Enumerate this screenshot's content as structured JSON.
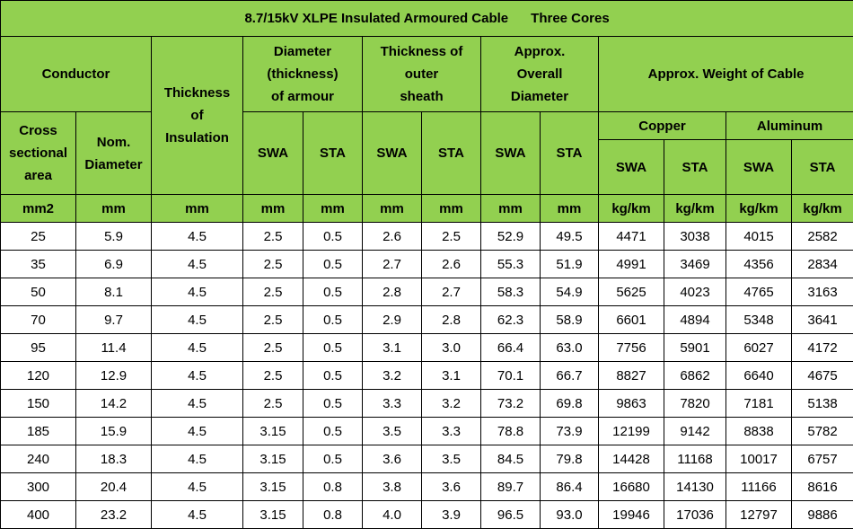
{
  "title": "8.7/15kV XLPE Insulated Armoured Cable      Three Cores",
  "headers": {
    "conductor": "Conductor",
    "thickness_insulation": "Thickness\nof\nInsulation",
    "diameter_armour": "Diameter\n(thickness)\nof armour",
    "thickness_sheath": "Thickness of\nouter\nsheath",
    "overall_diameter": "Approx.\nOverall\nDiameter",
    "weight": "Approx. Weight of Cable",
    "cross_section": "Cross\nsectional\narea",
    "nom_diameter": "Nom.\nDiameter",
    "copper": "Copper",
    "aluminum": "Aluminum",
    "swa": "SWA",
    "sta": "STA"
  },
  "units": [
    "mm2",
    "mm",
    "mm",
    "mm",
    "mm",
    "mm",
    "mm",
    "mm",
    "mm",
    "kg/km",
    "kg/km",
    "kg/km",
    "kg/km"
  ],
  "rows": [
    [
      "25",
      "5.9",
      "4.5",
      "2.5",
      "0.5",
      "2.6",
      "2.5",
      "52.9",
      "49.5",
      "4471",
      "3038",
      "4015",
      "2582"
    ],
    [
      "35",
      "6.9",
      "4.5",
      "2.5",
      "0.5",
      "2.7",
      "2.6",
      "55.3",
      "51.9",
      "4991",
      "3469",
      "4356",
      "2834"
    ],
    [
      "50",
      "8.1",
      "4.5",
      "2.5",
      "0.5",
      "2.8",
      "2.7",
      "58.3",
      "54.9",
      "5625",
      "4023",
      "4765",
      "3163"
    ],
    [
      "70",
      "9.7",
      "4.5",
      "2.5",
      "0.5",
      "2.9",
      "2.8",
      "62.3",
      "58.9",
      "6601",
      "4894",
      "5348",
      "3641"
    ],
    [
      "95",
      "11.4",
      "4.5",
      "2.5",
      "0.5",
      "3.1",
      "3.0",
      "66.4",
      "63.0",
      "7756",
      "5901",
      "6027",
      "4172"
    ],
    [
      "120",
      "12.9",
      "4.5",
      "2.5",
      "0.5",
      "3.2",
      "3.1",
      "70.1",
      "66.7",
      "8827",
      "6862",
      "6640",
      "4675"
    ],
    [
      "150",
      "14.2",
      "4.5",
      "2.5",
      "0.5",
      "3.3",
      "3.2",
      "73.2",
      "69.8",
      "9863",
      "7820",
      "7181",
      "5138"
    ],
    [
      "185",
      "15.9",
      "4.5",
      "3.15",
      "0.5",
      "3.5",
      "3.3",
      "78.8",
      "73.9",
      "12199",
      "9142",
      "8838",
      "5782"
    ],
    [
      "240",
      "18.3",
      "4.5",
      "3.15",
      "0.5",
      "3.6",
      "3.5",
      "84.5",
      "79.8",
      "14428",
      "11168",
      "10017",
      "6757"
    ],
    [
      "300",
      "20.4",
      "4.5",
      "3.15",
      "0.8",
      "3.8",
      "3.6",
      "89.7",
      "86.4",
      "16680",
      "14130",
      "11166",
      "8616"
    ],
    [
      "400",
      "23.2",
      "4.5",
      "3.15",
      "0.8",
      "4.0",
      "3.9",
      "96.5",
      "93.0",
      "19946",
      "17036",
      "12797",
      "9886"
    ]
  ],
  "colors": {
    "header_bg": "#92d050",
    "border": "#000000",
    "body_bg": "#ffffff"
  }
}
